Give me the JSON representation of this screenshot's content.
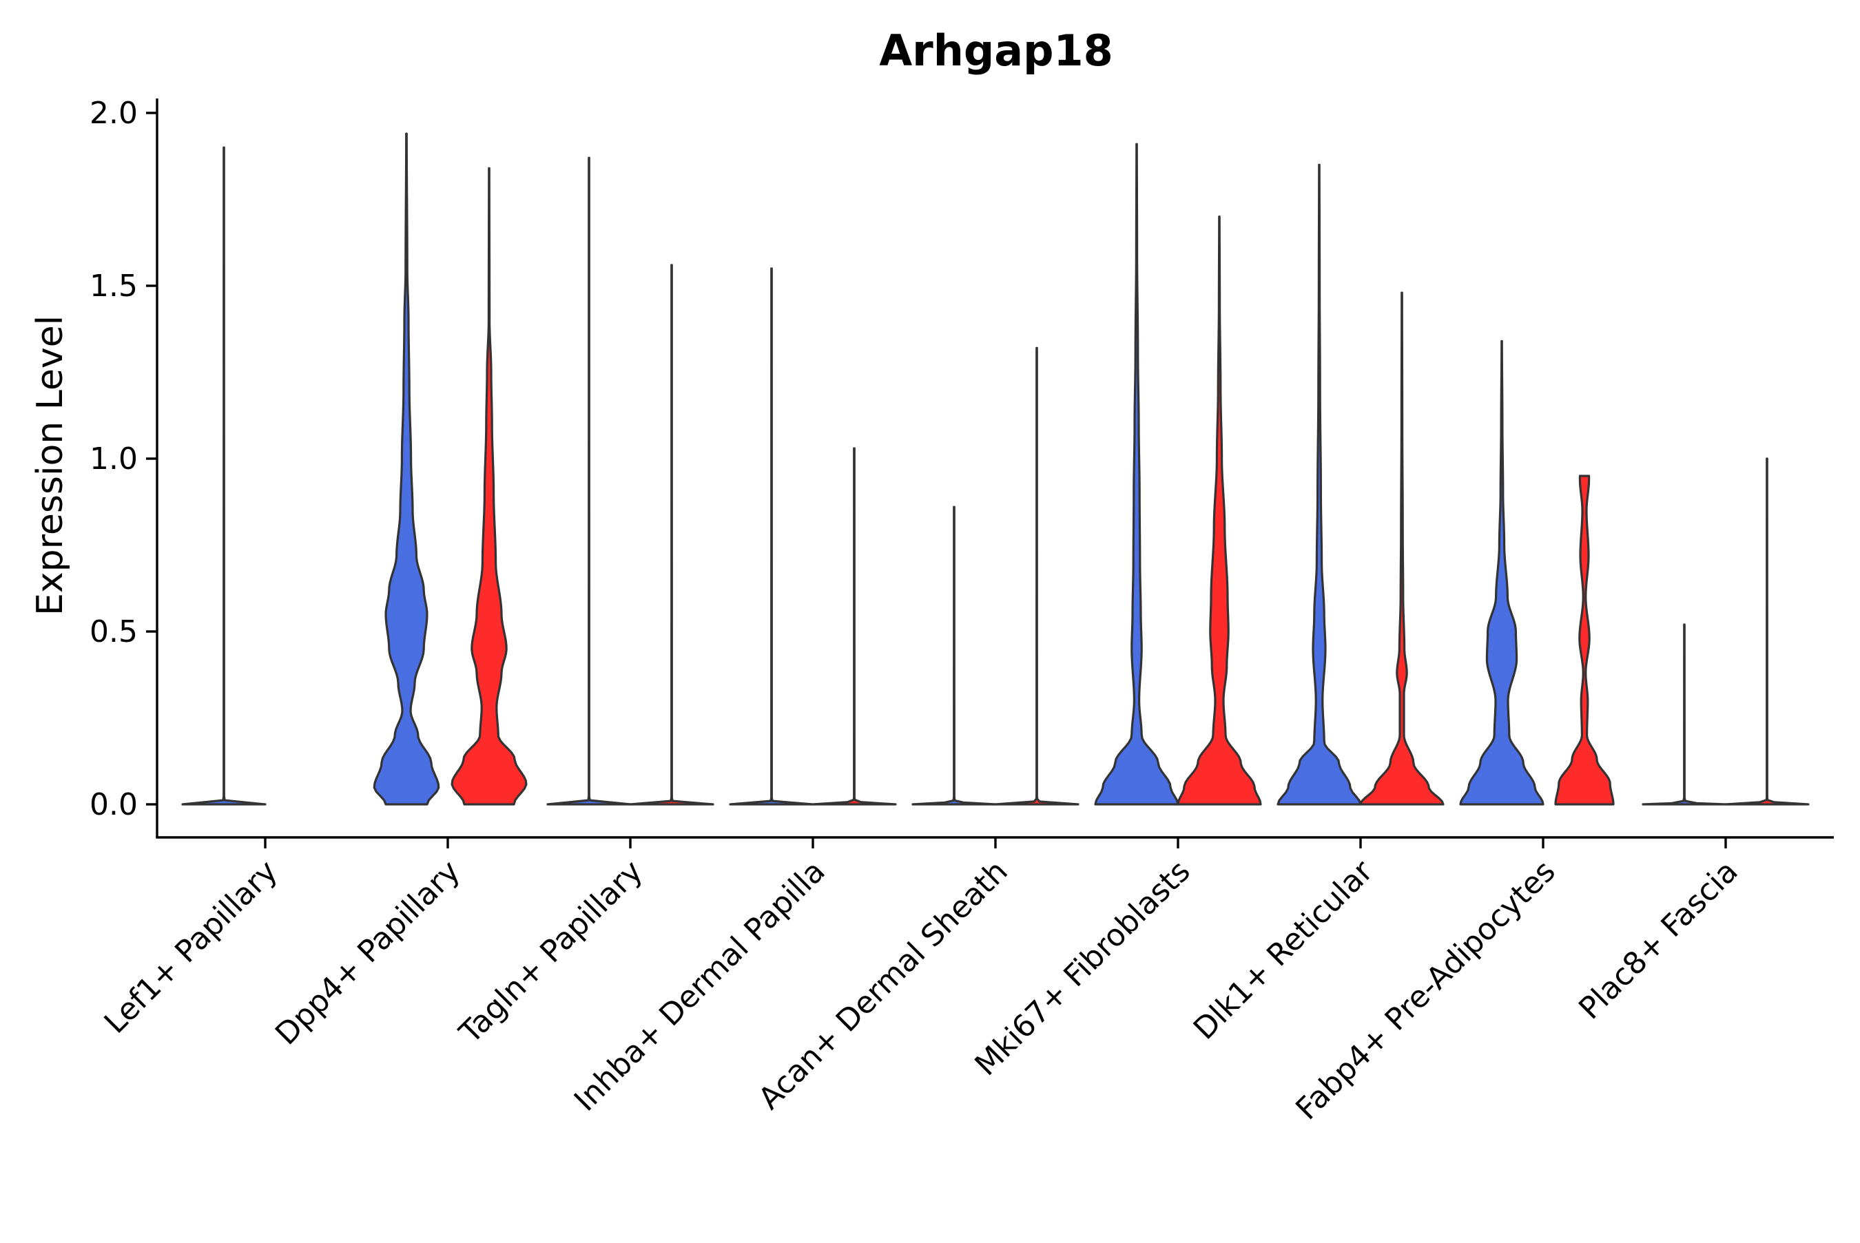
{
  "chart_data": {
    "type": "violin",
    "title": "Arhgap18",
    "xlabel": "",
    "ylabel": "Expression Level",
    "ylim": [
      -0.1,
      2.05
    ],
    "yticks": [
      0.0,
      0.5,
      1.0,
      1.5,
      2.0
    ],
    "ytick_labels": [
      "0.0",
      "0.5",
      "1.0",
      "1.5",
      "2.0"
    ],
    "grid": false,
    "legend": "none",
    "colors": {
      "group1": "#4a6fe3",
      "group2": "#ff2a2a",
      "outline": "#333333",
      "axis": "#000000"
    },
    "categories": [
      "Lef1+ Papillary",
      "Dpp4+ Papillary",
      "Tagln+ Papillary",
      "Inhba+ Dermal Papilla",
      "Acan+ Dermal Sheath",
      "Mki67+ Fibroblasts",
      "Dlk1+ Reticular",
      "Fabp4+ Pre-Adipocytes",
      "Plac8+ Fascia"
    ],
    "series": [
      {
        "name": "group1",
        "color": "#4a6fe3",
        "violins": [
          {
            "max": 1.9,
            "density": [
              [
                0,
                1.0
              ],
              [
                0.003,
                0.3
              ],
              [
                0.01,
                0.02
              ],
              [
                0.02,
                0.005
              ],
              [
                1.9,
                0.004
              ]
            ]
          },
          {
            "max": 1.94,
            "density": [
              [
                0,
                0.5
              ],
              [
                0.05,
                0.78
              ],
              [
                0.12,
                0.6
              ],
              [
                0.2,
                0.28
              ],
              [
                0.27,
                0.1
              ],
              [
                0.35,
                0.2
              ],
              [
                0.45,
                0.42
              ],
              [
                0.55,
                0.5
              ],
              [
                0.62,
                0.42
              ],
              [
                0.72,
                0.24
              ],
              [
                0.85,
                0.15
              ],
              [
                1.0,
                0.11
              ],
              [
                1.2,
                0.07
              ],
              [
                1.4,
                0.05
              ],
              [
                1.55,
                0.02
              ],
              [
                1.94,
                0.005
              ]
            ]
          },
          {
            "max": 1.87,
            "density": [
              [
                0,
                1.0
              ],
              [
                0.003,
                0.3
              ],
              [
                0.01,
                0.02
              ],
              [
                0.02,
                0.005
              ],
              [
                1.87,
                0.004
              ]
            ]
          },
          {
            "max": 1.55,
            "density": [
              [
                0,
                1.0
              ],
              [
                0.003,
                0.3
              ],
              [
                0.01,
                0.02
              ],
              [
                0.02,
                0.005
              ],
              [
                1.55,
                0.004
              ]
            ]
          },
          {
            "max": 0.86,
            "density": [
              [
                0,
                1.0
              ],
              [
                0.003,
                0.3
              ],
              [
                0.01,
                0.02
              ],
              [
                0.02,
                0.005
              ],
              [
                0.86,
                0.004
              ]
            ]
          },
          {
            "max": 1.91,
            "density": [
              [
                0,
                1.0
              ],
              [
                0.05,
                0.82
              ],
              [
                0.12,
                0.52
              ],
              [
                0.2,
                0.12
              ],
              [
                0.3,
                0.06
              ],
              [
                0.45,
                0.12
              ],
              [
                0.55,
                0.1
              ],
              [
                0.7,
                0.08
              ],
              [
                0.9,
                0.07
              ],
              [
                1.1,
                0.05
              ],
              [
                1.3,
                0.03
              ],
              [
                1.6,
                0.01
              ],
              [
                1.91,
                0.004
              ]
            ]
          },
          {
            "max": 1.85,
            "density": [
              [
                0,
                1.0
              ],
              [
                0.05,
                0.75
              ],
              [
                0.12,
                0.48
              ],
              [
                0.18,
                0.12
              ],
              [
                0.3,
                0.08
              ],
              [
                0.45,
                0.15
              ],
              [
                0.55,
                0.12
              ],
              [
                0.7,
                0.06
              ],
              [
                0.9,
                0.04
              ],
              [
                1.2,
                0.02
              ],
              [
                1.5,
                0.01
              ],
              [
                1.85,
                0.004
              ]
            ]
          },
          {
            "max": 1.34,
            "density": [
              [
                0,
                1.0
              ],
              [
                0.05,
                0.8
              ],
              [
                0.12,
                0.52
              ],
              [
                0.2,
                0.18
              ],
              [
                0.3,
                0.15
              ],
              [
                0.42,
                0.36
              ],
              [
                0.5,
                0.34
              ],
              [
                0.6,
                0.14
              ],
              [
                0.75,
                0.06
              ],
              [
                0.9,
                0.03
              ],
              [
                1.1,
                0.015
              ],
              [
                1.34,
                0.004
              ]
            ]
          },
          {
            "max": 0.52,
            "density": [
              [
                0,
                1.0
              ],
              [
                0.003,
                0.3
              ],
              [
                0.01,
                0.02
              ],
              [
                0.02,
                0.005
              ],
              [
                0.52,
                0.004
              ]
            ]
          }
        ]
      },
      {
        "name": "group2",
        "color": "#ff2a2a",
        "violins": [
          {
            "max": 0,
            "density": []
          },
          {
            "max": 1.84,
            "density": [
              [
                0,
                0.6
              ],
              [
                0.06,
                0.9
              ],
              [
                0.13,
                0.62
              ],
              [
                0.2,
                0.22
              ],
              [
                0.28,
                0.18
              ],
              [
                0.38,
                0.3
              ],
              [
                0.45,
                0.42
              ],
              [
                0.55,
                0.3
              ],
              [
                0.7,
                0.16
              ],
              [
                0.9,
                0.11
              ],
              [
                1.1,
                0.07
              ],
              [
                1.25,
                0.05
              ],
              [
                1.4,
                0.01
              ],
              [
                1.84,
                0.004
              ]
            ]
          },
          {
            "max": 1.56,
            "density": [
              [
                0,
                1.0
              ],
              [
                0.003,
                0.3
              ],
              [
                0.01,
                0.02
              ],
              [
                0.02,
                0.005
              ],
              [
                1.56,
                0.004
              ]
            ]
          },
          {
            "max": 1.03,
            "density": [
              [
                0,
                1.0
              ],
              [
                0.003,
                0.3
              ],
              [
                0.01,
                0.02
              ],
              [
                0.02,
                0.005
              ],
              [
                1.03,
                0.004
              ]
            ]
          },
          {
            "max": 1.32,
            "density": [
              [
                0,
                1.0
              ],
              [
                0.003,
                0.3
              ],
              [
                0.01,
                0.02
              ],
              [
                0.02,
                0.005
              ],
              [
                1.32,
                0.004
              ]
            ]
          },
          {
            "max": 1.7,
            "density": [
              [
                0,
                1.0
              ],
              [
                0.05,
                0.85
              ],
              [
                0.12,
                0.52
              ],
              [
                0.2,
                0.15
              ],
              [
                0.3,
                0.1
              ],
              [
                0.4,
                0.18
              ],
              [
                0.5,
                0.22
              ],
              [
                0.6,
                0.2
              ],
              [
                0.8,
                0.13
              ],
              [
                1.0,
                0.06
              ],
              [
                1.2,
                0.03
              ],
              [
                1.45,
                0.01
              ],
              [
                1.7,
                0.004
              ]
            ]
          },
          {
            "max": 1.48,
            "density": [
              [
                0,
                1.0
              ],
              [
                0.05,
                0.65
              ],
              [
                0.12,
                0.28
              ],
              [
                0.2,
                0.05
              ],
              [
                0.32,
                0.05
              ],
              [
                0.38,
                0.12
              ],
              [
                0.45,
                0.06
              ],
              [
                0.6,
                0.03
              ],
              [
                0.8,
                0.02
              ],
              [
                1.1,
                0.01
              ],
              [
                1.48,
                0.004
              ]
            ]
          },
          {
            "max": 0.95,
            "density": [
              [
                0,
                0.7
              ],
              [
                0.06,
                0.62
              ],
              [
                0.13,
                0.3
              ],
              [
                0.2,
                0.06
              ],
              [
                0.3,
                0.08
              ],
              [
                0.38,
                0.03
              ],
              [
                0.48,
                0.12
              ],
              [
                0.6,
                0.03
              ],
              [
                0.72,
                0.1
              ],
              [
                0.85,
                0.05
              ],
              [
                0.94,
                0.11
              ],
              [
                0.95,
                0.11
              ]
            ]
          },
          {
            "max": 1.0,
            "density": [
              [
                0,
                1.0
              ],
              [
                0.003,
                0.3
              ],
              [
                0.01,
                0.02
              ],
              [
                0.02,
                0.005
              ],
              [
                1.0,
                0.004
              ]
            ]
          }
        ]
      }
    ]
  }
}
